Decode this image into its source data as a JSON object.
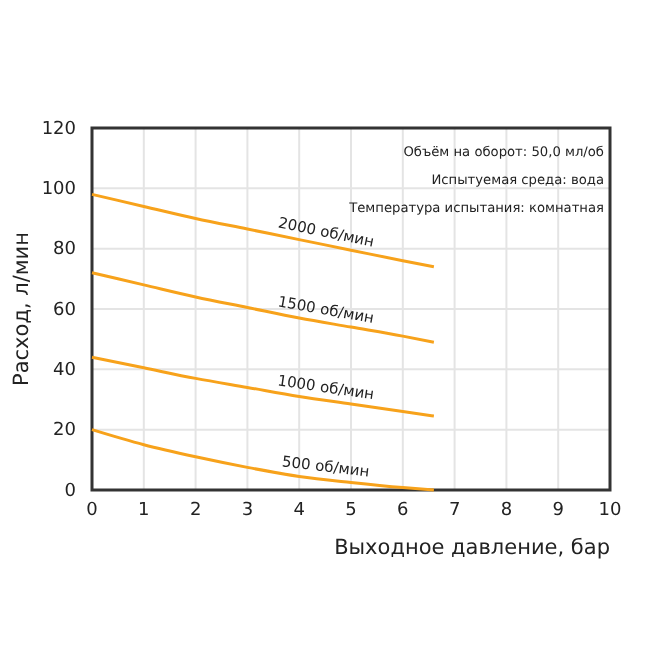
{
  "chart_data": {
    "type": "line",
    "xlabel": "Выходное давление, бар",
    "ylabel": "Расход, л/мин",
    "xlim": [
      0,
      10
    ],
    "xticks": [
      0,
      1,
      2,
      3,
      4,
      5,
      6,
      7,
      8,
      9,
      10
    ],
    "ylim": [
      0,
      120
    ],
    "yticks": [
      0,
      20,
      40,
      60,
      80,
      100,
      120
    ],
    "grid": true,
    "x": [
      0,
      1,
      2,
      3,
      4,
      5,
      6,
      6.6
    ],
    "series": [
      {
        "name": "2000 об/мин",
        "color": "#f7a21b",
        "values": [
          98,
          94,
          90,
          86.5,
          83,
          79.5,
          76,
          74
        ]
      },
      {
        "name": "1500 об/мин",
        "color": "#f7a21b",
        "values": [
          72,
          68,
          64,
          60.5,
          57,
          54,
          51,
          49
        ]
      },
      {
        "name": "1000 об/мин",
        "color": "#f7a21b",
        "values": [
          44,
          40.5,
          37,
          34,
          31,
          28.5,
          26,
          24.5
        ]
      },
      {
        "name": "500 об/мин",
        "color": "#f7a21b",
        "values": [
          20,
          15,
          11,
          7.5,
          4.5,
          2.5,
          0.8,
          0
        ]
      }
    ],
    "annotations": [
      "Объём на оборот: 50,0 мл/об",
      "Испытуемая среда: вода",
      "Температура испытания: комнатная"
    ]
  }
}
